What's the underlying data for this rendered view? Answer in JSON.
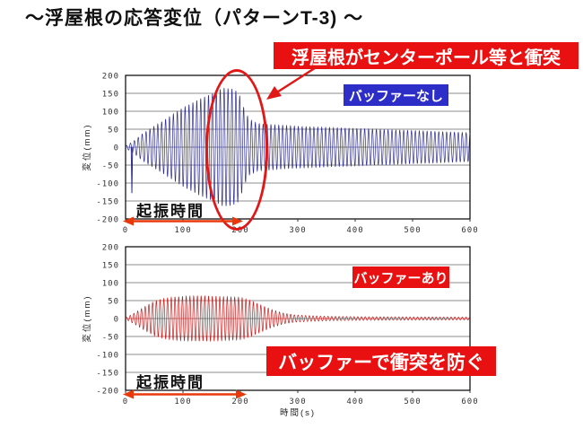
{
  "title": "～浮屋根の応答変位（パターンT-3) ～",
  "annotations": {
    "collision_banner": "浮屋根がセンターポール等と衝突",
    "no_buffer_label": "バッファーなし",
    "buffer_label": "バッファーあり",
    "prevent_banner": "バッファーで衝突を防ぐ",
    "excitation_top": "起振時間",
    "excitation_bottom": "起振時間",
    "excitation_range_s": [
      0,
      200
    ]
  },
  "colors": {
    "banner_red": "#e81010",
    "label_blue": "#2d2dc8",
    "highlight_red": "#e01818",
    "excitation_arrow": "#e8three",
    "arrow_red": "#e8380c",
    "grid": "#666666",
    "frame": "#000000",
    "wave_no_buffer": "#2e2e8c",
    "wave_with_buffer": "#c42020"
  },
  "chart_data": [
    {
      "type": "line",
      "title": "バッファーなし",
      "xlabel": "時間(s)",
      "ylabel": "変位(mm)",
      "xlim": [
        0,
        600
      ],
      "ylim": [
        -200,
        200
      ],
      "xticks": [
        0,
        100,
        200,
        300,
        400,
        500,
        600
      ],
      "yticks": [
        200,
        150,
        100,
        50,
        0,
        -50,
        -100,
        -150,
        -200
      ],
      "grid": "horizontal",
      "series": [
        {
          "name": "バッファーなし",
          "color": "#2e2e8c",
          "period_s": 6.8,
          "envelope": [
            [
              0,
              3
            ],
            [
              15,
              18
            ],
            [
              30,
              38
            ],
            [
              60,
              68
            ],
            [
              100,
              110
            ],
            [
              130,
              135
            ],
            [
              155,
              152
            ],
            [
              170,
              165
            ],
            [
              185,
              163
            ],
            [
              195,
              155
            ],
            [
              200,
              140
            ],
            [
              207,
              105
            ],
            [
              215,
              78
            ],
            [
              230,
              66
            ],
            [
              260,
              62
            ],
            [
              300,
              58
            ],
            [
              350,
              55
            ],
            [
              400,
              52
            ],
            [
              500,
              46
            ],
            [
              600,
              40
            ]
          ],
          "spike": {
            "t": 11,
            "value": -128
          }
        }
      ]
    },
    {
      "type": "line",
      "title": "バッファーあり",
      "xlabel": "時間(s)",
      "ylabel": "変位(mm)",
      "xlim": [
        0,
        600
      ],
      "ylim": [
        -200,
        200
      ],
      "xticks": [
        0,
        100,
        200,
        300,
        400,
        500,
        600
      ],
      "yticks": [
        200,
        150,
        100,
        50,
        0,
        -50,
        -100,
        -150,
        -200
      ],
      "grid": "horizontal",
      "series": [
        {
          "name": "バッファーあり",
          "color": "#c42020",
          "period_s": 6.5,
          "envelope": [
            [
              0,
              2
            ],
            [
              15,
              15
            ],
            [
              30,
              30
            ],
            [
              50,
              48
            ],
            [
              70,
              57
            ],
            [
              90,
              61
            ],
            [
              120,
              63
            ],
            [
              160,
              62
            ],
            [
              200,
              59
            ],
            [
              215,
              52
            ],
            [
              235,
              38
            ],
            [
              255,
              25
            ],
            [
              275,
              15
            ],
            [
              295,
              10
            ],
            [
              320,
              8
            ],
            [
              360,
              6
            ],
            [
              420,
              5
            ],
            [
              500,
              4.5
            ],
            [
              600,
              4
            ]
          ],
          "spike": null
        }
      ]
    }
  ]
}
